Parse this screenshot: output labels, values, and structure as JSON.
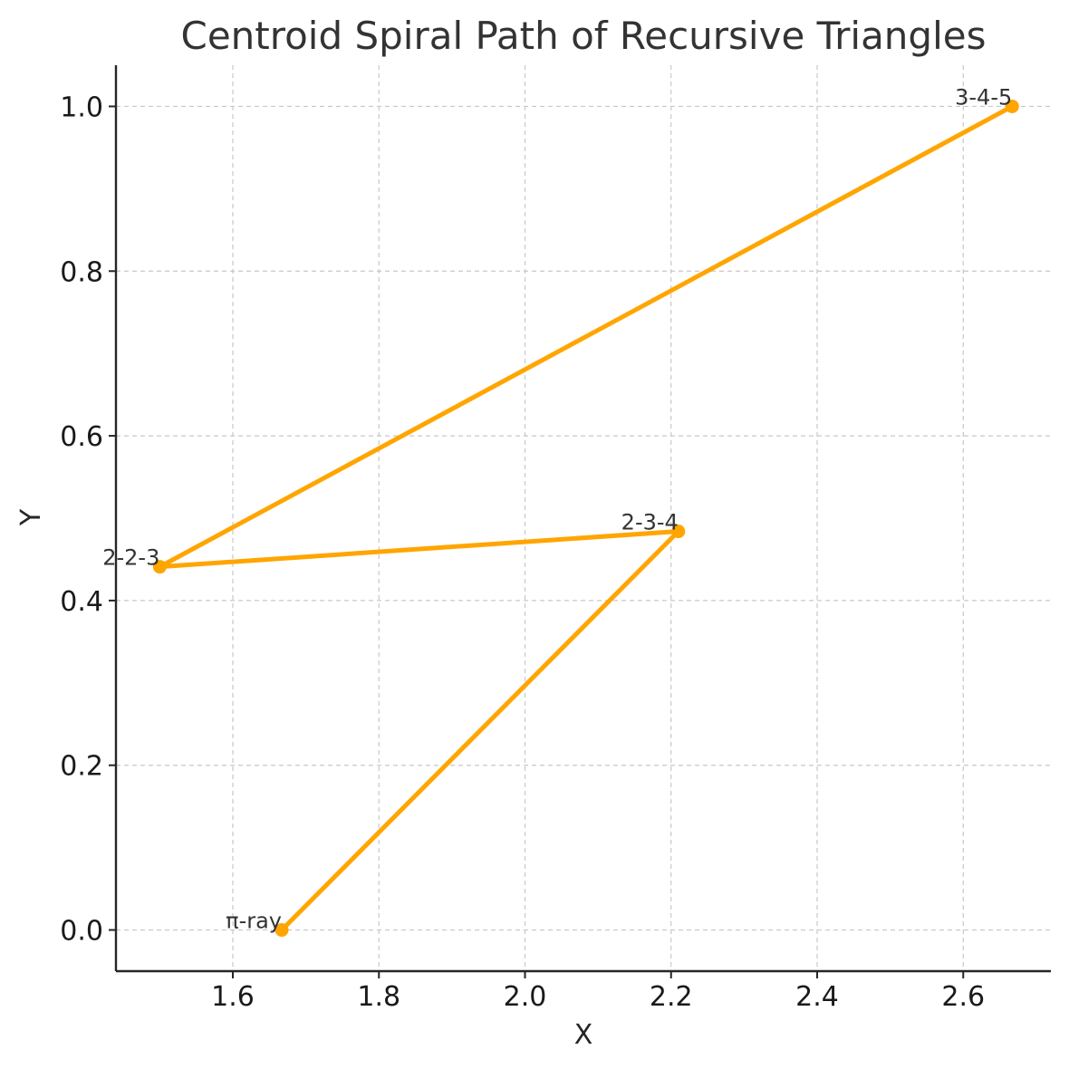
{
  "chart_data": {
    "type": "line",
    "title": "Centroid Spiral Path of Recursive Triangles",
    "xlabel": "X",
    "ylabel": "Y",
    "xlim": [
      1.44,
      2.72
    ],
    "ylim": [
      -0.05,
      1.05
    ],
    "xticks": [
      1.6,
      1.8,
      2.0,
      2.2,
      2.4,
      2.6
    ],
    "xtick_labels": [
      "1.6",
      "1.8",
      "2.0",
      "2.2",
      "2.4",
      "2.6"
    ],
    "yticks": [
      0.0,
      0.2,
      0.4,
      0.6,
      0.8,
      1.0
    ],
    "ytick_labels": [
      "0.0",
      "0.2",
      "0.4",
      "0.6",
      "0.8",
      "1.0"
    ],
    "grid": true,
    "color": "#FFA500",
    "points": [
      {
        "label": "3-4-5",
        "x": 2.667,
        "y": 1.0
      },
      {
        "label": "2-2-3",
        "x": 1.5,
        "y": 0.441
      },
      {
        "label": "2-3-4",
        "x": 2.21,
        "y": 0.484
      },
      {
        "label": "π-ray",
        "x": 1.667,
        "y": 0.0
      }
    ]
  }
}
